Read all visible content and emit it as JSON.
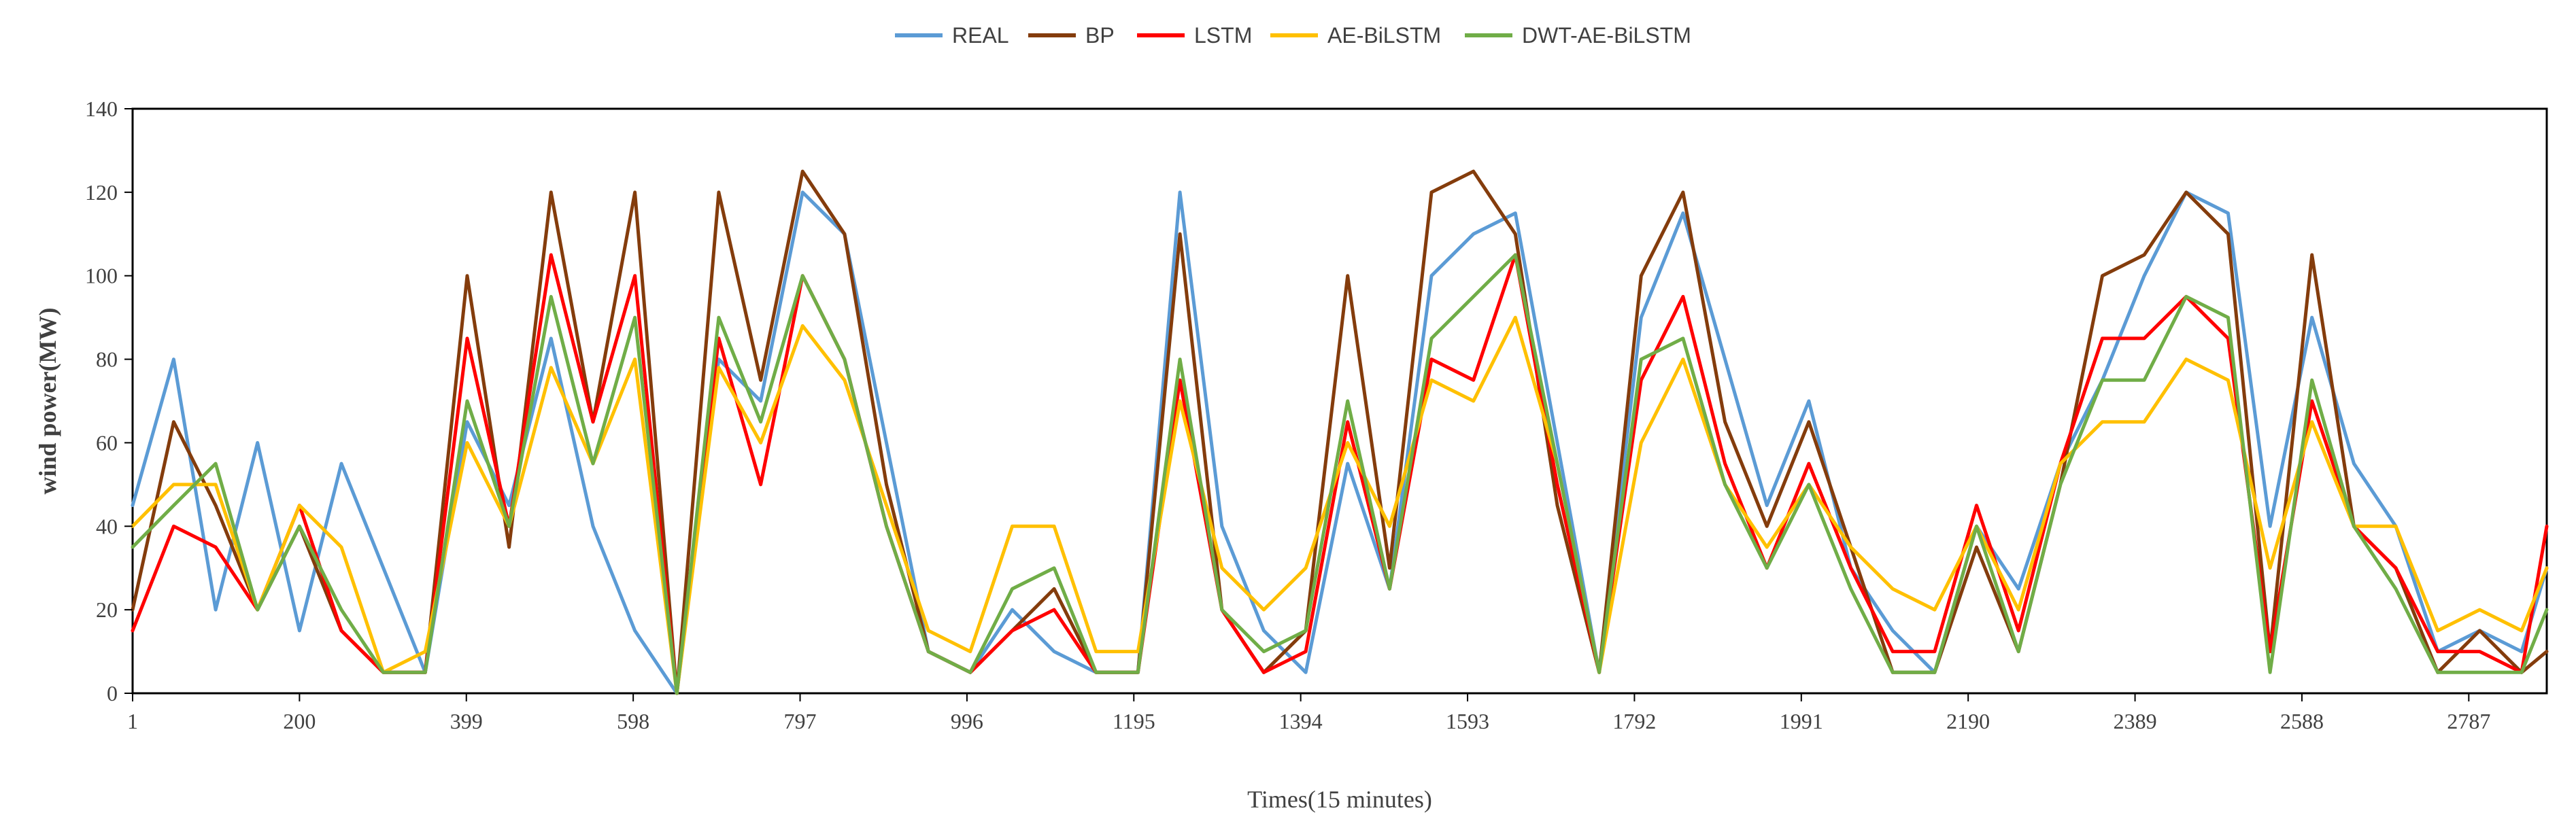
{
  "chart_data": {
    "type": "line",
    "title": "",
    "xlabel": "Times(15 minutes)",
    "ylabel": "wind power(MW)",
    "xlim": [
      1,
      2880
    ],
    "ylim": [
      0,
      140
    ],
    "yticks": [
      0,
      20,
      40,
      60,
      80,
      100,
      120,
      140
    ],
    "xticks": [
      1,
      200,
      399,
      598,
      797,
      996,
      1195,
      1394,
      1593,
      1792,
      1991,
      2190,
      2389,
      2588,
      2787
    ],
    "ytick_labels": [
      "0",
      "20",
      "40",
      "60",
      "80",
      "100",
      "120",
      "140"
    ],
    "xtick_labels": [
      "1",
      "200",
      "399",
      "598",
      "797",
      "996",
      "1195",
      "1394",
      "1593",
      "1792",
      "1991",
      "2190",
      "2389",
      "2588",
      "2787"
    ],
    "legend_position": "top-center",
    "grid": false,
    "x": [
      1,
      50,
      100,
      150,
      200,
      250,
      300,
      350,
      400,
      450,
      500,
      550,
      600,
      650,
      700,
      750,
      800,
      850,
      900,
      950,
      1000,
      1050,
      1100,
      1150,
      1200,
      1250,
      1300,
      1350,
      1400,
      1450,
      1500,
      1550,
      1600,
      1650,
      1700,
      1750,
      1800,
      1850,
      1900,
      1950,
      2000,
      2050,
      2100,
      2150,
      2200,
      2250,
      2300,
      2350,
      2400,
      2450,
      2500,
      2550,
      2600,
      2650,
      2700,
      2750,
      2800,
      2850,
      2880
    ],
    "series": [
      {
        "name": "REAL",
        "color": "#5b9bd5",
        "values": [
          45,
          80,
          20,
          60,
          15,
          55,
          30,
          5,
          65,
          45,
          85,
          40,
          15,
          0,
          80,
          70,
          120,
          110,
          60,
          10,
          5,
          20,
          10,
          5,
          5,
          120,
          40,
          15,
          5,
          55,
          25,
          100,
          110,
          115,
          60,
          5,
          90,
          115,
          80,
          45,
          70,
          30,
          15,
          5,
          40,
          25,
          55,
          75,
          100,
          120,
          115,
          40,
          90,
          55,
          40,
          10,
          15,
          10,
          30
        ]
      },
      {
        "name": "BP",
        "color": "#843c0c",
        "values": [
          20,
          65,
          45,
          20,
          40,
          15,
          5,
          5,
          100,
          35,
          120,
          65,
          120,
          0,
          120,
          75,
          125,
          110,
          50,
          10,
          5,
          15,
          25,
          5,
          5,
          110,
          20,
          5,
          15,
          100,
          30,
          120,
          125,
          110,
          45,
          5,
          100,
          120,
          65,
          40,
          65,
          35,
          5,
          5,
          35,
          10,
          50,
          100,
          105,
          120,
          110,
          10,
          105,
          40,
          30,
          5,
          15,
          5,
          10
        ]
      },
      {
        "name": "LSTM",
        "color": "#ff0000",
        "values": [
          15,
          40,
          35,
          20,
          45,
          15,
          5,
          5,
          85,
          40,
          105,
          65,
          100,
          0,
          85,
          50,
          100,
          80,
          40,
          10,
          5,
          15,
          20,
          5,
          5,
          75,
          20,
          5,
          10,
          65,
          25,
          80,
          75,
          105,
          50,
          5,
          75,
          95,
          55,
          30,
          55,
          30,
          10,
          10,
          45,
          15,
          55,
          85,
          85,
          95,
          85,
          10,
          70,
          40,
          30,
          10,
          10,
          5,
          40
        ]
      },
      {
        "name": "AE-BiLSTM",
        "color": "#ffc000",
        "values": [
          40,
          50,
          50,
          20,
          45,
          35,
          5,
          10,
          60,
          40,
          78,
          55,
          80,
          0,
          78,
          60,
          88,
          75,
          45,
          15,
          10,
          40,
          40,
          10,
          10,
          70,
          30,
          20,
          30,
          60,
          40,
          75,
          70,
          90,
          55,
          5,
          60,
          80,
          50,
          35,
          50,
          35,
          25,
          20,
          40,
          20,
          55,
          65,
          65,
          80,
          75,
          30,
          65,
          40,
          40,
          15,
          20,
          15,
          30
        ]
      },
      {
        "name": "DWT-AE-BiLSTM",
        "color": "#70ad47",
        "values": [
          35,
          45,
          55,
          20,
          40,
          20,
          5,
          5,
          70,
          40,
          95,
          55,
          90,
          0,
          90,
          65,
          100,
          80,
          40,
          10,
          5,
          25,
          30,
          5,
          5,
          80,
          20,
          10,
          15,
          70,
          25,
          85,
          95,
          105,
          55,
          5,
          80,
          85,
          50,
          30,
          50,
          25,
          5,
          5,
          40,
          10,
          50,
          75,
          75,
          95,
          90,
          5,
          75,
          40,
          25,
          5,
          5,
          5,
          20
        ]
      }
    ]
  }
}
